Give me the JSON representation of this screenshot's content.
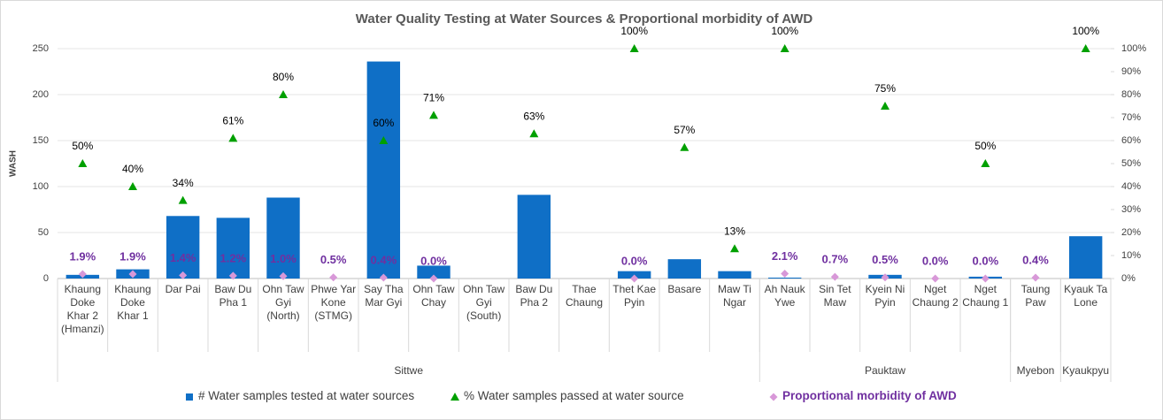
{
  "chart_data": {
    "type": "combo",
    "title": "Water Quality Testing at Water Sources & Proportional morbidity of AWD",
    "y_axis_label": "WASH",
    "categories": [
      "Khaung Doke Khar 2 (Hmanzi)",
      "Khaung Doke Khar 1",
      "Dar Pai",
      "Baw Du Pha 1",
      "Ohn Taw Gyi (North)",
      "Phwe Yar Kone (STMG)",
      "Say Tha Mar Gyi",
      "Ohn Taw Chay",
      "Ohn Taw Gyi (South)",
      "Baw Du Pha 2",
      "Thae Chaung",
      "Thet Kae Pyin",
      "Basare",
      "Maw Ti Ngar",
      "Ah Nauk Ywe",
      "Sin Tet Maw",
      "Kyein Ni Pyin",
      "Nget Chaung 2",
      "Nget Chaung 1",
      "Taung Paw",
      "Kyauk Ta Lone"
    ],
    "groups": [
      {
        "label": "Sittwe",
        "span": 14
      },
      {
        "label": "Pauktaw",
        "span": 5
      },
      {
        "label": "Myebon",
        "span": 1
      },
      {
        "label": "Kyaukpyu",
        "span": 1
      }
    ],
    "series": [
      {
        "name": "# Water samples tested at water sources",
        "type": "bar",
        "color": "#0f6fc6",
        "values": [
          4,
          10,
          68,
          66,
          88,
          null,
          236,
          14,
          null,
          91,
          null,
          8,
          21,
          8,
          1,
          null,
          4,
          null,
          2,
          null,
          46
        ]
      },
      {
        "name": "% Water samples passed at water source",
        "type": "marker",
        "marker": "triangle",
        "axis": "y2",
        "color": "#00a000",
        "values": [
          50,
          40,
          34,
          61,
          80,
          null,
          60,
          71,
          null,
          63,
          null,
          100,
          57,
          13,
          100,
          null,
          75,
          null,
          50,
          null,
          100
        ],
        "value_labels": [
          "50%",
          "40%",
          "34%",
          "61%",
          "80%",
          null,
          "60%",
          "71%",
          null,
          "63%",
          null,
          "100%",
          "57%",
          "13%",
          "100%",
          null,
          "75%",
          null,
          "50%",
          null,
          "100%"
        ]
      },
      {
        "name": "Proportional morbidity of AWD",
        "type": "marker",
        "marker": "diamond",
        "axis": "y2",
        "color": "#d898d8",
        "label_color": "#7030a0",
        "values": [
          1.9,
          1.9,
          1.4,
          1.2,
          1.0,
          0.5,
          0.4,
          0.0,
          null,
          null,
          null,
          0.0,
          null,
          null,
          2.1,
          0.7,
          0.5,
          0.0,
          0.0,
          0.4,
          null
        ],
        "value_labels": [
          "1.9%",
          "1.9%",
          "1.4%",
          "1.2%",
          "1.0%",
          "0.5%",
          "0.4%",
          "0.0%",
          null,
          null,
          null,
          "0.0%",
          null,
          null,
          "2.1%",
          "0.7%",
          "0.5%",
          "0.0%",
          "0.0%",
          "0.4%",
          null
        ]
      }
    ],
    "ylim": [
      0,
      250
    ],
    "yticks": [
      0,
      50,
      100,
      150,
      200,
      250
    ],
    "y2lim": [
      0,
      100
    ],
    "y2ticks": [
      {
        "value": 0,
        "label": "0%"
      },
      {
        "value": 10,
        "label": "10%"
      },
      {
        "value": 20,
        "label": "20%"
      },
      {
        "value": 30,
        "label": "30%"
      },
      {
        "value": 40,
        "label": "40%"
      },
      {
        "value": 50,
        "label": "50%"
      },
      {
        "value": 60,
        "label": "60%"
      },
      {
        "value": 70,
        "label": "70%"
      },
      {
        "value": 80,
        "label": "80%"
      },
      {
        "value": 90,
        "label": "90%"
      },
      {
        "value": 100,
        "label": "100%"
      }
    ],
    "legend": "bottom"
  }
}
